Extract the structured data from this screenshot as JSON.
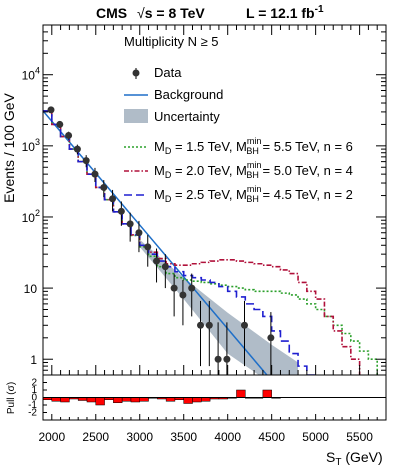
{
  "chart_data": {
    "type": "line",
    "header": {
      "left_pre": "CMS",
      "left_sqrt": "√",
      "left_post": "s = 8 TeV",
      "right_main": "L = 12.1 fb",
      "right_sup": "-1"
    },
    "annotation": "Multiplicity N ≥ 5",
    "xlabel_main": "S",
    "xlabel_sub": "T",
    "xlabel_unit": " (GeV)",
    "ylabel": "Events / 100 GeV",
    "pull_ylabel": "Pull (σ)",
    "xlim": [
      1900,
      5800
    ],
    "ylim": [
      0.6,
      50000
    ],
    "yscale": "log",
    "x_ticks": [
      2000,
      2500,
      3000,
      3500,
      4000,
      4500,
      5000,
      5500
    ],
    "x_tick_labels": [
      "2000",
      "2500",
      "3000",
      "3500",
      "4000",
      "4500",
      "5000",
      "5500"
    ],
    "y_tick_labels": [
      {
        "value": 1,
        "base": "1",
        "exp": ""
      },
      {
        "value": 10,
        "base": "10",
        "exp": ""
      },
      {
        "value": 100,
        "base": "10",
        "exp": "2"
      },
      {
        "value": 1000,
        "base": "10",
        "exp": "3"
      },
      {
        "value": 10000,
        "base": "10",
        "exp": "4"
      }
    ],
    "pull_ylim": [
      -3,
      3
    ],
    "pull_ticks": [
      -2,
      -1,
      0,
      1,
      2
    ],
    "pull_tick_labels": [
      "-2",
      "-1",
      "0",
      "1",
      "2"
    ],
    "legend": {
      "data": "Data",
      "background": "Background",
      "uncertainty": "Uncertainty",
      "signals": [
        {
          "md": "M",
          "md_sub": "D",
          "md_val": " = 1.5 TeV, M",
          "bh_sup": "min",
          "bh_sub": "BH",
          "bh_val": " = 5.5 TeV, n = 6"
        },
        {
          "md": "M",
          "md_sub": "D",
          "md_val": " = 2.0 TeV, M",
          "bh_sup": "min",
          "bh_sub": "BH",
          "bh_val": " = 5.0 TeV, n = 4"
        },
        {
          "md": "M",
          "md_sub": "D",
          "md_val": " = 2.5 TeV, M",
          "bh_sup": "min",
          "bh_sub": "BH",
          "bh_val": " = 4.5 TeV, n = 2"
        }
      ]
    },
    "colors": {
      "data": "#000000",
      "background": "#1f6fc8",
      "uncertainty": "#b0bcc8",
      "signal1": "#2ca02c",
      "signal2": "#b0103a",
      "signal3": "#1f1fd0",
      "pull": "#ff0000"
    },
    "data": {
      "x": [
        1900,
        2000,
        2100,
        2200,
        2300,
        2400,
        2500,
        2600,
        2700,
        2800,
        2900,
        3000,
        3100,
        3200,
        3300,
        3400,
        3500,
        3600,
        3700,
        3800,
        3900,
        4000,
        4100,
        4200,
        4300,
        4400,
        4500
      ],
      "y": [
        3200,
        2000,
        1400,
        900,
        620,
        400,
        260,
        180,
        120,
        80,
        60,
        38,
        24,
        20,
        10,
        8,
        10,
        3,
        3,
        1,
        1,
        0,
        3,
        0,
        0,
        2,
        0
      ],
      "err_lo": [
        280,
        220,
        180,
        140,
        120,
        90,
        70,
        60,
        45,
        35,
        28,
        18,
        12,
        10,
        6,
        5,
        6,
        2.2,
        2.2,
        0.8,
        0.8,
        0,
        2.2,
        0,
        0,
        1.6,
        0
      ],
      "err_hi": [
        280,
        220,
        180,
        140,
        120,
        90,
        70,
        60,
        45,
        35,
        28,
        18,
        12,
        10,
        6,
        5,
        6,
        3.6,
        3.6,
        2.3,
        2.3,
        0,
        3.6,
        0,
        0,
        2.6,
        0
      ]
    },
    "background": {
      "x": [
        1900,
        4500
      ],
      "y": [
        3100,
        0.5
      ]
    },
    "uncertainty": {
      "x": [
        3000,
        3500,
        4000,
        4500,
        4800
      ],
      "lo": [
        38,
        7,
        1.2,
        0.45,
        0.3
      ],
      "hi": [
        48,
        14,
        4.5,
        1.6,
        0.9
      ]
    },
    "signals": [
      {
        "name": "M_D = 1.5 TeV, M_BH^min = 5.5 TeV, n = 6",
        "edges": [
          1900,
          2000,
          2100,
          2200,
          2300,
          2400,
          2500,
          2600,
          2700,
          2800,
          2900,
          3000,
          3100,
          3200,
          3300,
          3400,
          3500,
          3600,
          3700,
          3800,
          3900,
          4000,
          4100,
          4200,
          4300,
          4400,
          4500,
          4600,
          4700,
          4800,
          4900,
          5000,
          5100,
          5200,
          5300,
          5400,
          5500,
          5600,
          5700
        ],
        "values": [
          3100,
          2000,
          1350,
          900,
          600,
          400,
          260,
          175,
          118,
          80,
          55,
          38,
          28,
          20,
          16,
          14,
          13,
          12.5,
          12,
          11.5,
          11,
          10.5,
          10,
          9.5,
          9,
          9,
          9,
          8.5,
          8,
          7,
          6,
          5,
          4,
          3,
          2.3,
          1.8,
          1.3,
          1
        ]
      },
      {
        "name": "M_D = 2.0 TeV, M_BH^min = 5.0 TeV, n = 4",
        "edges": [
          1900,
          2000,
          2100,
          2200,
          2300,
          2400,
          2500,
          2600,
          2700,
          2800,
          2900,
          3000,
          3100,
          3200,
          3300,
          3400,
          3500,
          3600,
          3700,
          3800,
          3900,
          4000,
          4100,
          4200,
          4300,
          4400,
          4500,
          4600,
          4700,
          4800,
          4900,
          5000,
          5100,
          5200,
          5300,
          5400,
          5500
        ],
        "values": [
          3100,
          2000,
          1350,
          900,
          600,
          400,
          260,
          175,
          118,
          80,
          56,
          40,
          32,
          26,
          22,
          21,
          21,
          22,
          23,
          24,
          25,
          25,
          24,
          23,
          22,
          21,
          20,
          18,
          16,
          12,
          9,
          7,
          4,
          2.5,
          1.5,
          1
        ]
      },
      {
        "name": "M_D = 2.5 TeV, M_BH^min = 4.5 TeV, n = 2",
        "edges": [
          1900,
          2000,
          2100,
          2200,
          2300,
          2400,
          2500,
          2600,
          2700,
          2800,
          2900,
          3000,
          3100,
          3200,
          3300,
          3400,
          3500,
          3600,
          3700,
          3800,
          3900,
          4000,
          4100,
          4200,
          4300,
          4400,
          4500,
          4600,
          4700,
          4800,
          4900,
          5000
        ],
        "values": [
          3100,
          2000,
          1350,
          900,
          600,
          400,
          260,
          175,
          118,
          80,
          56,
          40,
          30,
          24,
          20,
          17,
          15,
          14,
          13,
          12,
          10.5,
          9,
          7.5,
          6,
          5,
          4,
          2.5,
          1.8,
          1.2,
          0.8,
          0.6
        ]
      }
    ],
    "pull": {
      "x": [
        1900,
        2000,
        2100,
        2200,
        2300,
        2400,
        2500,
        2600,
        2700,
        2800,
        2900,
        3000,
        3100,
        3200,
        3300,
        3400,
        3500,
        3600,
        3700,
        3800,
        3900,
        4000,
        4100,
        4200,
        4300,
        4400,
        4500
      ],
      "y": [
        -0.3,
        -0.5,
        -0.6,
        -0.2,
        -0.4,
        -0.6,
        -1.0,
        -0.3,
        -0.7,
        -0.5,
        -0.6,
        -0.5,
        -0.1,
        -0.2,
        -0.5,
        -0.3,
        -0.8,
        -0.6,
        -0.5,
        -0.2,
        -0.2,
        -0.1,
        1.0,
        -0.1,
        -0.1,
        1.0,
        -0.1
      ]
    }
  }
}
